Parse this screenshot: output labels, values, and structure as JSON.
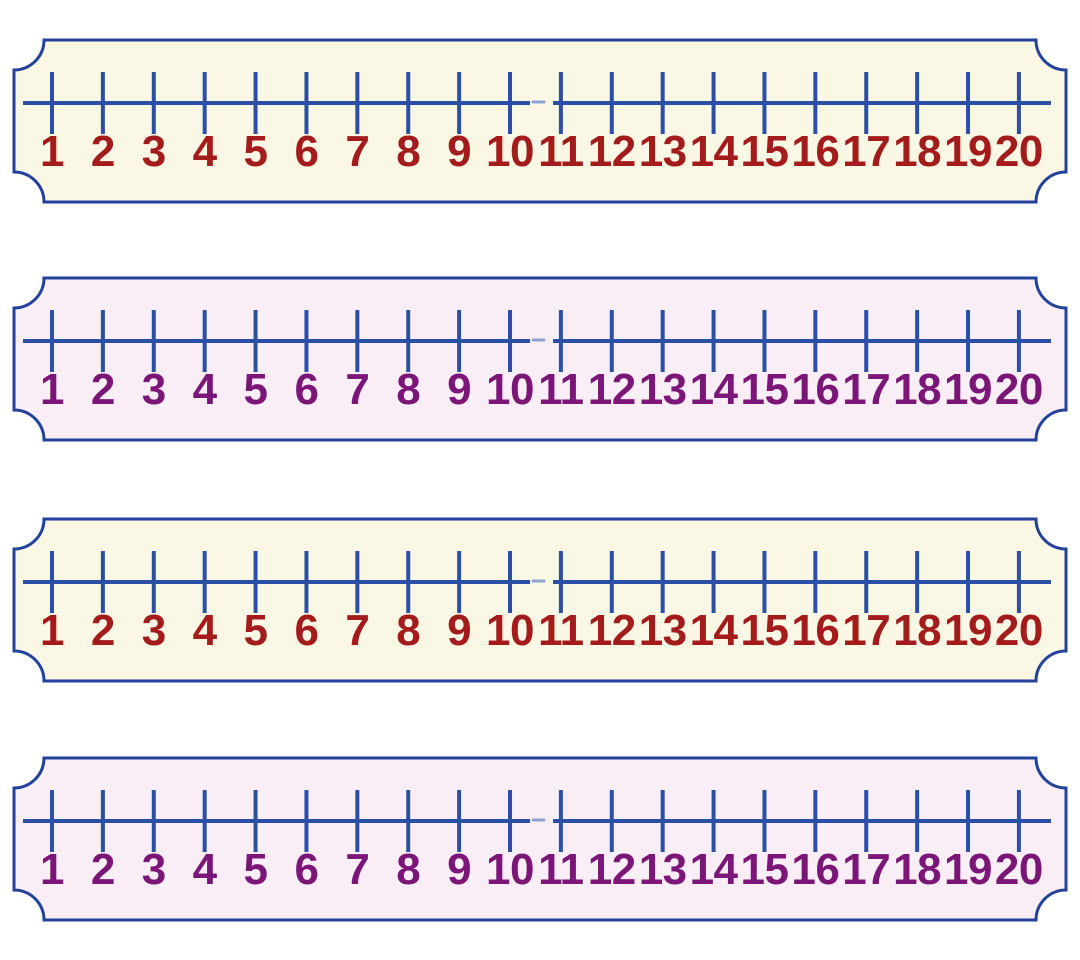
{
  "page": {
    "background": "#ffffff",
    "title": "Number lines 1 to 20 printable cards"
  },
  "colors": {
    "frame_border": "#24429b",
    "line_blue": "#2a4fa5",
    "gap_dash": "#8fa3d0",
    "cream_background": "#faf7e5",
    "pink_background": "#f9eef5",
    "red_numbers": "#a41b1b",
    "purple_numbers": "#7b1678"
  },
  "rulers": [
    {
      "id": "number-line-1",
      "theme": "cream",
      "background": "#faf7e5",
      "number_color": "#a41b1b",
      "range_start": "1",
      "range_end": "20",
      "numbers": [
        "1",
        "2",
        "3",
        "4",
        "5",
        "6",
        "7",
        "8",
        "9",
        "10",
        "11",
        "12",
        "13",
        "14",
        "15",
        "16",
        "17",
        "18",
        "19",
        "20"
      ]
    },
    {
      "id": "number-line-2",
      "theme": "pink",
      "background": "#f9eef5",
      "number_color": "#7b1678",
      "range_start": "1",
      "range_end": "20",
      "numbers": [
        "1",
        "2",
        "3",
        "4",
        "5",
        "6",
        "7",
        "8",
        "9",
        "10",
        "11",
        "12",
        "13",
        "14",
        "15",
        "16",
        "17",
        "18",
        "19",
        "20"
      ]
    },
    {
      "id": "number-line-3",
      "theme": "cream",
      "background": "#faf7e5",
      "number_color": "#a41b1b",
      "range_start": "1",
      "range_end": "20",
      "numbers": [
        "1",
        "2",
        "3",
        "4",
        "5",
        "6",
        "7",
        "8",
        "9",
        "10",
        "11",
        "12",
        "13",
        "14",
        "15",
        "16",
        "17",
        "18",
        "19",
        "20"
      ]
    },
    {
      "id": "number-line-4",
      "theme": "pink",
      "background": "#f9eef5",
      "number_color": "#7b1678",
      "range_start": "1",
      "range_end": "20",
      "numbers": [
        "1",
        "2",
        "3",
        "4",
        "5",
        "6",
        "7",
        "8",
        "9",
        "10",
        "11",
        "12",
        "13",
        "14",
        "15",
        "16",
        "17",
        "18",
        "19",
        "20"
      ]
    }
  ]
}
